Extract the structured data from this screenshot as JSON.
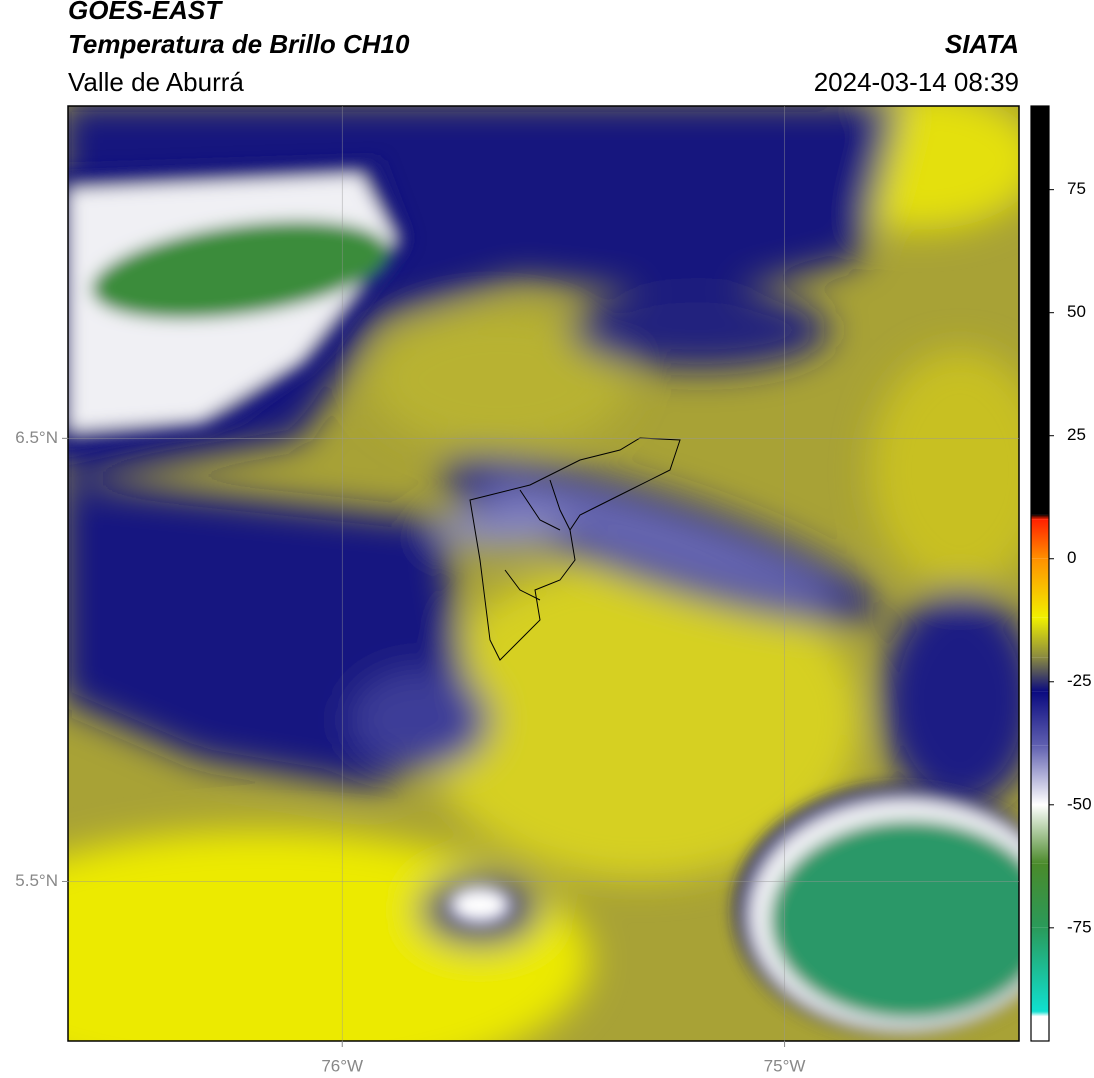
{
  "header": {
    "title": "GOES-EAST",
    "subtitle": "Temperatura de Brillo CH10",
    "region": "Valle de Aburrá",
    "source": "SIATA",
    "datetime": "2024-03-14 08:39"
  },
  "map": {
    "xlim": [
      -76.62,
      -74.47
    ],
    "ylim": [
      5.14,
      7.25
    ],
    "xticks": [
      {
        "value": -76,
        "label": "76°W"
      },
      {
        "value": -75,
        "label": "75°W"
      }
    ],
    "yticks": [
      {
        "value": 6.5,
        "label": "6.5°N"
      },
      {
        "value": 5.5,
        "label": "5.5°N"
      }
    ],
    "grid": true
  },
  "colorbar": {
    "lim": [
      -98,
      92
    ],
    "ticks": [
      75,
      50,
      25,
      0,
      -25,
      -50,
      -75
    ],
    "stops": [
      {
        "value": -98,
        "color": "#ffffff"
      },
      {
        "value": -93,
        "color": "#ffffff"
      },
      {
        "value": -92,
        "color": "#10e0d0"
      },
      {
        "value": -75,
        "color": "#2a9a5a"
      },
      {
        "value": -62,
        "color": "#4a8a2a"
      },
      {
        "value": -50,
        "color": "#ffffff"
      },
      {
        "value": -38,
        "color": "#6060b0"
      },
      {
        "value": -27,
        "color": "#0a0a80"
      },
      {
        "value": -20,
        "color": "#8a8a40"
      },
      {
        "value": -12,
        "color": "#f0f000"
      },
      {
        "value": 0,
        "color": "#ff9000"
      },
      {
        "value": 8,
        "color": "#ff2000"
      },
      {
        "value": 9,
        "color": "#000000"
      },
      {
        "value": 92,
        "color": "#000000"
      }
    ]
  }
}
